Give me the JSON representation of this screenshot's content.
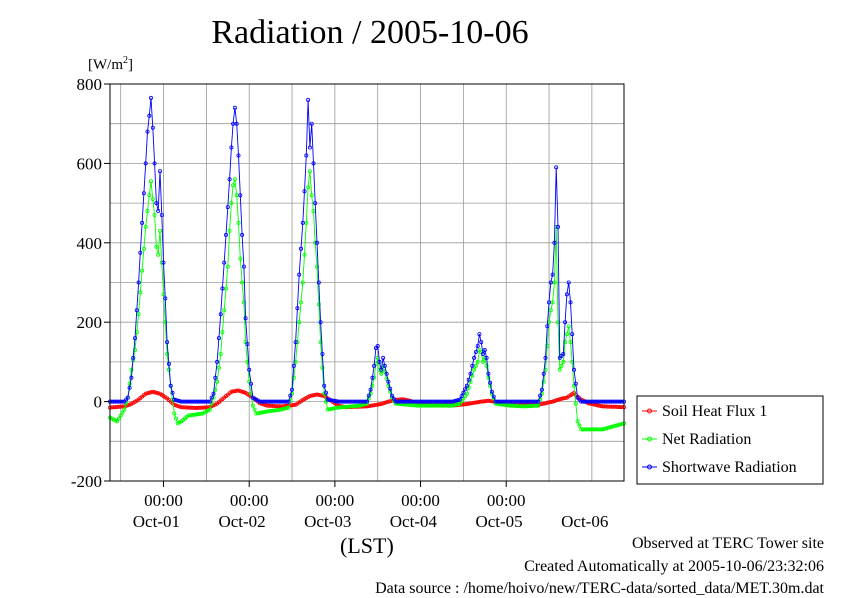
{
  "chart_data": {
    "type": "line",
    "title": "Radiation / 2005-10-06",
    "ylabel_unit": "[W/m",
    "ylabel_unit_sup": "2",
    "ylabel_unit_end": "]",
    "xlabel": "(LST)",
    "ylim": [
      -200,
      800
    ],
    "yticks": [
      "800",
      "600",
      "400",
      "200",
      "0",
      "-200"
    ],
    "yticks_values": [
      800,
      600,
      400,
      200,
      0,
      -200
    ],
    "xlim_hours": [
      0,
      144
    ],
    "xticks_time": [
      "00:00",
      "00:00",
      "00:00",
      "00:00",
      "00:00"
    ],
    "xticks_date": [
      "Oct-01",
      "Oct-02",
      "Oct-03",
      "Oct-04",
      "Oct-05",
      "Oct-06"
    ],
    "grid": true,
    "legend_position": "right",
    "series": [
      {
        "name": "Soil Heat Flux 1",
        "color": "#ff0000",
        "points": [
          [
            0,
            -15
          ],
          [
            4,
            -12
          ],
          [
            6,
            -6
          ],
          [
            8,
            5
          ],
          [
            10,
            20
          ],
          [
            12,
            25
          ],
          [
            14,
            20
          ],
          [
            16,
            8
          ],
          [
            18,
            -8
          ],
          [
            20,
            -14
          ],
          [
            24,
            -16
          ],
          [
            28,
            -14
          ],
          [
            30,
            -5
          ],
          [
            32,
            10
          ],
          [
            34,
            25
          ],
          [
            36,
            28
          ],
          [
            38,
            22
          ],
          [
            40,
            10
          ],
          [
            42,
            -4
          ],
          [
            44,
            -10
          ],
          [
            48,
            -12
          ],
          [
            52,
            -8
          ],
          [
            54,
            4
          ],
          [
            56,
            14
          ],
          [
            58,
            18
          ],
          [
            60,
            14
          ],
          [
            62,
            2
          ],
          [
            64,
            -10
          ],
          [
            66,
            -14
          ],
          [
            72,
            -12
          ],
          [
            76,
            -6
          ],
          [
            78,
            0
          ],
          [
            80,
            4
          ],
          [
            82,
            6
          ],
          [
            84,
            2
          ],
          [
            86,
            -4
          ],
          [
            90,
            -8
          ],
          [
            96,
            -10
          ],
          [
            100,
            -6
          ],
          [
            104,
            0
          ],
          [
            106,
            2
          ],
          [
            108,
            0
          ],
          [
            110,
            -6
          ],
          [
            114,
            -10
          ],
          [
            120,
            -8
          ],
          [
            124,
            0
          ],
          [
            126,
            6
          ],
          [
            128,
            10
          ],
          [
            130,
            22
          ],
          [
            131,
            12
          ],
          [
            132,
            5
          ],
          [
            134,
            -4
          ],
          [
            136,
            -8
          ],
          [
            138,
            -12
          ],
          [
            144,
            -14
          ]
        ]
      },
      {
        "name": "Net Radiation",
        "color": "#00ff00",
        "points": [
          [
            0,
            -40
          ],
          [
            2,
            -50
          ],
          [
            4,
            -20
          ],
          [
            5,
            10
          ],
          [
            6,
            80
          ],
          [
            7,
            130
          ],
          [
            8,
            220
          ],
          [
            9,
            330
          ],
          [
            10,
            440
          ],
          [
            10.5,
            480
          ],
          [
            11,
            520
          ],
          [
            11.5,
            555
          ],
          [
            12,
            510
          ],
          [
            12.5,
            470
          ],
          [
            13,
            390
          ],
          [
            13.5,
            370
          ],
          [
            14,
            430
          ],
          [
            14.5,
            350
          ],
          [
            15,
            270
          ],
          [
            15.5,
            200
          ],
          [
            16,
            120
          ],
          [
            17,
            40
          ],
          [
            18,
            -30
          ],
          [
            19,
            -55
          ],
          [
            20,
            -50
          ],
          [
            22,
            -35
          ],
          [
            26,
            -30
          ],
          [
            28,
            -20
          ],
          [
            29,
            10
          ],
          [
            30,
            50
          ],
          [
            31,
            120
          ],
          [
            32,
            230
          ],
          [
            33,
            340
          ],
          [
            33.5,
            430
          ],
          [
            34,
            500
          ],
          [
            34.5,
            545
          ],
          [
            35,
            560
          ],
          [
            35.5,
            520
          ],
          [
            36,
            450
          ],
          [
            36.5,
            360
          ],
          [
            37,
            300
          ],
          [
            37.5,
            250
          ],
          [
            38,
            150
          ],
          [
            39,
            50
          ],
          [
            40,
            -10
          ],
          [
            41,
            -30
          ],
          [
            44,
            -25
          ],
          [
            48,
            -20
          ],
          [
            50,
            -15
          ],
          [
            51,
            20
          ],
          [
            52,
            100
          ],
          [
            53,
            200
          ],
          [
            54,
            300
          ],
          [
            54.5,
            370
          ],
          [
            55,
            450
          ],
          [
            55.5,
            540
          ],
          [
            56,
            580
          ],
          [
            56.5,
            520
          ],
          [
            57,
            480
          ],
          [
            57.5,
            400
          ],
          [
            58,
            340
          ],
          [
            59,
            150
          ],
          [
            60,
            20
          ],
          [
            61,
            -20
          ],
          [
            64,
            -15
          ],
          [
            70,
            -10
          ],
          [
            72,
            -5
          ],
          [
            73,
            20
          ],
          [
            74,
            60
          ],
          [
            74.5,
            95
          ],
          [
            75,
            110
          ],
          [
            75.5,
            80
          ],
          [
            76,
            70
          ],
          [
            76.5,
            90
          ],
          [
            77,
            75
          ],
          [
            78,
            40
          ],
          [
            79,
            10
          ],
          [
            80,
            -5
          ],
          [
            86,
            -10
          ],
          [
            92,
            -10
          ],
          [
            96,
            -10
          ],
          [
            98,
            -5
          ],
          [
            100,
            20
          ],
          [
            101,
            50
          ],
          [
            102,
            80
          ],
          [
            103,
            100
          ],
          [
            103.5,
            130
          ],
          [
            104,
            125
          ],
          [
            104.5,
            100
          ],
          [
            105,
            110
          ],
          [
            105.5,
            90
          ],
          [
            106,
            60
          ],
          [
            107,
            20
          ],
          [
            108,
            -5
          ],
          [
            112,
            -10
          ],
          [
            116,
            -12
          ],
          [
            120,
            -10
          ],
          [
            121,
            20
          ],
          [
            122,
            80
          ],
          [
            122.5,
            140
          ],
          [
            123,
            200
          ],
          [
            123.5,
            230
          ],
          [
            124,
            250
          ],
          [
            124.5,
            300
          ],
          [
            125,
            440
          ],
          [
            125.5,
            200
          ],
          [
            126,
            80
          ],
          [
            126.5,
            90
          ],
          [
            127,
            100
          ],
          [
            127.5,
            150
          ],
          [
            128,
            170
          ],
          [
            128.5,
            190
          ],
          [
            129,
            150
          ],
          [
            129.5,
            100
          ],
          [
            130,
            40
          ],
          [
            131,
            -50
          ],
          [
            132,
            -70
          ],
          [
            134,
            -70
          ],
          [
            136,
            -70
          ],
          [
            138,
            -70
          ],
          [
            140,
            -65
          ],
          [
            144,
            -55
          ]
        ]
      },
      {
        "name": "Shortwave Radiation",
        "color": "#0000ff",
        "points": [
          [
            0,
            0
          ],
          [
            4,
            0
          ],
          [
            5,
            10
          ],
          [
            6,
            60
          ],
          [
            7,
            160
          ],
          [
            8,
            300
          ],
          [
            9,
            450
          ],
          [
            10,
            600
          ],
          [
            10.5,
            680
          ],
          [
            11,
            720
          ],
          [
            11.5,
            765
          ],
          [
            12,
            690
          ],
          [
            12.5,
            600
          ],
          [
            13,
            500
          ],
          [
            13.5,
            480
          ],
          [
            14,
            580
          ],
          [
            14.5,
            470
          ],
          [
            15,
            350
          ],
          [
            15.5,
            260
          ],
          [
            16,
            150
          ],
          [
            17,
            40
          ],
          [
            18,
            5
          ],
          [
            20,
            0
          ],
          [
            28,
            0
          ],
          [
            29,
            20
          ],
          [
            30,
            100
          ],
          [
            31,
            220
          ],
          [
            32,
            350
          ],
          [
            33,
            490
          ],
          [
            33.5,
            560
          ],
          [
            34,
            640
          ],
          [
            34.5,
            700
          ],
          [
            35,
            740
          ],
          [
            35.5,
            700
          ],
          [
            36,
            620
          ],
          [
            36.5,
            520
          ],
          [
            37,
            420
          ],
          [
            37.5,
            340
          ],
          [
            38,
            210
          ],
          [
            39,
            80
          ],
          [
            40,
            10
          ],
          [
            42,
            0
          ],
          [
            50,
            0
          ],
          [
            51,
            30
          ],
          [
            52,
            150
          ],
          [
            53,
            320
          ],
          [
            54,
            450
          ],
          [
            54.5,
            530
          ],
          [
            55,
            620
          ],
          [
            55.5,
            760
          ],
          [
            56,
            640
          ],
          [
            56.5,
            700
          ],
          [
            57,
            600
          ],
          [
            57.5,
            500
          ],
          [
            58,
            400
          ],
          [
            59,
            200
          ],
          [
            60,
            40
          ],
          [
            61,
            5
          ],
          [
            64,
            0
          ],
          [
            72,
            0
          ],
          [
            73,
            30
          ],
          [
            74,
            90
          ],
          [
            74.5,
            135
          ],
          [
            75,
            140
          ],
          [
            75.5,
            100
          ],
          [
            76,
            80
          ],
          [
            76.5,
            110
          ],
          [
            77,
            90
          ],
          [
            78,
            50
          ],
          [
            79,
            15
          ],
          [
            80,
            0
          ],
          [
            96,
            0
          ],
          [
            98,
            5
          ],
          [
            100,
            40
          ],
          [
            101,
            70
          ],
          [
            102,
            110
          ],
          [
            103,
            140
          ],
          [
            103.5,
            170
          ],
          [
            104,
            150
          ],
          [
            104.5,
            120
          ],
          [
            105,
            130
          ],
          [
            105.5,
            110
          ],
          [
            106,
            70
          ],
          [
            107,
            25
          ],
          [
            108,
            0
          ],
          [
            120,
            0
          ],
          [
            121,
            30
          ],
          [
            122,
            110
          ],
          [
            122.5,
            190
          ],
          [
            123,
            250
          ],
          [
            123.5,
            300
          ],
          [
            124,
            320
          ],
          [
            124.5,
            400
          ],
          [
            125,
            590
          ],
          [
            125.5,
            440
          ],
          [
            126,
            110
          ],
          [
            126.5,
            115
          ],
          [
            127,
            120
          ],
          [
            127.5,
            200
          ],
          [
            128,
            270
          ],
          [
            128.5,
            300
          ],
          [
            129,
            250
          ],
          [
            129.5,
            170
          ],
          [
            130,
            80
          ],
          [
            131,
            10
          ],
          [
            132,
            0
          ],
          [
            144,
            0
          ]
        ]
      }
    ]
  },
  "footer": {
    "site": "Observed at TERC Tower site",
    "created": "Created Automatically at 2005-10-06/23:32:06",
    "source": "Data source : /home/hoivo/new/TERC-data/sorted_data/MET.30m.dat"
  }
}
